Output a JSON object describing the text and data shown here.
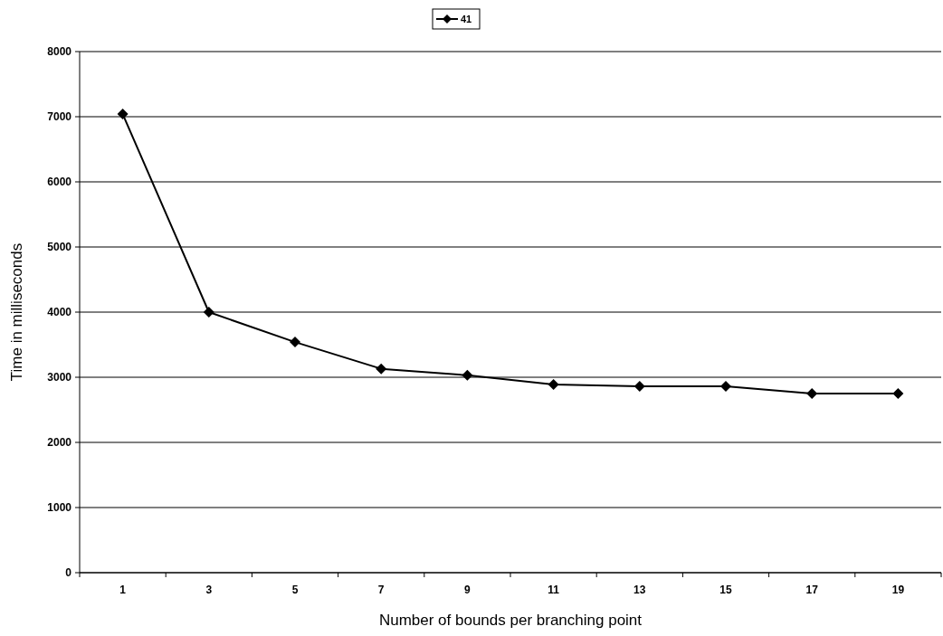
{
  "chart_data": {
    "type": "line",
    "xlabel": "Number of bounds per branching point",
    "ylabel": "Time in milliseconds",
    "categories": [
      "1",
      "3",
      "5",
      "7",
      "9",
      "11",
      "13",
      "15",
      "17",
      "19"
    ],
    "series": [
      {
        "name": "41",
        "color": "#000000",
        "values": [
          7040,
          4000,
          3540,
          3130,
          3030,
          2890,
          2860,
          2860,
          2750,
          2750
        ]
      }
    ],
    "ylim": [
      0,
      8000
    ],
    "yticks": [
      0,
      1000,
      2000,
      3000,
      4000,
      5000,
      6000,
      7000,
      8000
    ],
    "grid": "y",
    "legend": "top",
    "marker": "diamond",
    "line_style": "solid"
  }
}
